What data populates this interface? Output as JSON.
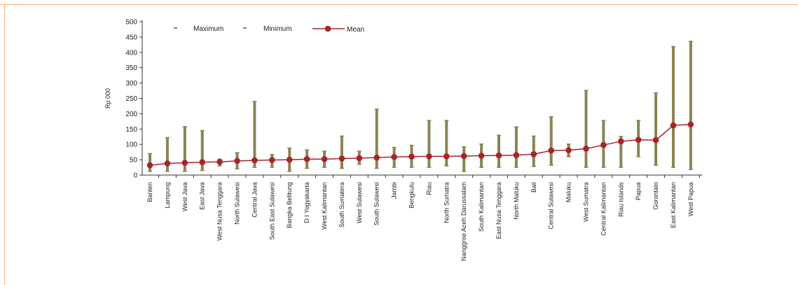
{
  "chart_data": {
    "type": "line",
    "ylabel": "Rp 000",
    "ylim": [
      0,
      500
    ],
    "yticks": [
      0,
      50,
      100,
      150,
      200,
      250,
      300,
      350,
      400,
      450,
      500
    ],
    "grid": false,
    "legend_position": "top-left",
    "legend": [
      {
        "key": "max",
        "label": "Maximum"
      },
      {
        "key": "min",
        "label": "Minimum"
      },
      {
        "key": "mean",
        "label": "Mean"
      }
    ],
    "colors": {
      "range": "#8a8455",
      "mean": "#a8242a",
      "axis": "#333333",
      "frame": "#f0b27a"
    },
    "categories": [
      "Banten",
      "Lampung",
      "West Java",
      "East Java",
      "West Nusa Tenggara",
      "North Sulawesi",
      "Central Java",
      "South East Sulawesi",
      "Bangka Belitung",
      "D I Yogyakarta",
      "West Kalimantan",
      "South Sumatera",
      "West Sulawesi",
      "South Sulawesi",
      "Jambi",
      "Bengkulu",
      "Riau",
      "North Sumatra",
      "Nanggroe Aceh Darussalam",
      "South Kalimantan",
      "East Nusa Tenggara",
      "North Maluku",
      "Bali",
      "Central Sulawesi",
      "Maluku",
      "West Sumatra",
      "Central Kalimantan",
      "Riau Islands",
      "Papua",
      "Gorontalo",
      "East Kalimantan",
      "West Papua"
    ],
    "series": [
      {
        "name": "Maximum",
        "values": [
          70,
          122,
          158,
          145,
          52,
          73,
          240,
          67,
          88,
          82,
          78,
          127,
          78,
          215,
          90,
          97,
          178,
          178,
          92,
          101,
          130,
          157,
          127,
          190,
          101,
          276,
          178,
          126,
          178,
          268,
          419,
          436
        ]
      },
      {
        "name": "Minimum",
        "values": [
          12,
          12,
          12,
          15,
          30,
          20,
          25,
          25,
          12,
          22,
          25,
          22,
          35,
          22,
          25,
          25,
          25,
          30,
          12,
          25,
          25,
          25,
          28,
          32,
          60,
          25,
          25,
          25,
          60,
          32,
          25,
          18
        ]
      },
      {
        "name": "Mean",
        "values": [
          32,
          38,
          40,
          42,
          43,
          46,
          48,
          49,
          50,
          52,
          52,
          54,
          55,
          57,
          59,
          60,
          61,
          61,
          62,
          63,
          64,
          65,
          68,
          80,
          81,
          86,
          98,
          110,
          115,
          114,
          162,
          165
        ]
      }
    ]
  }
}
